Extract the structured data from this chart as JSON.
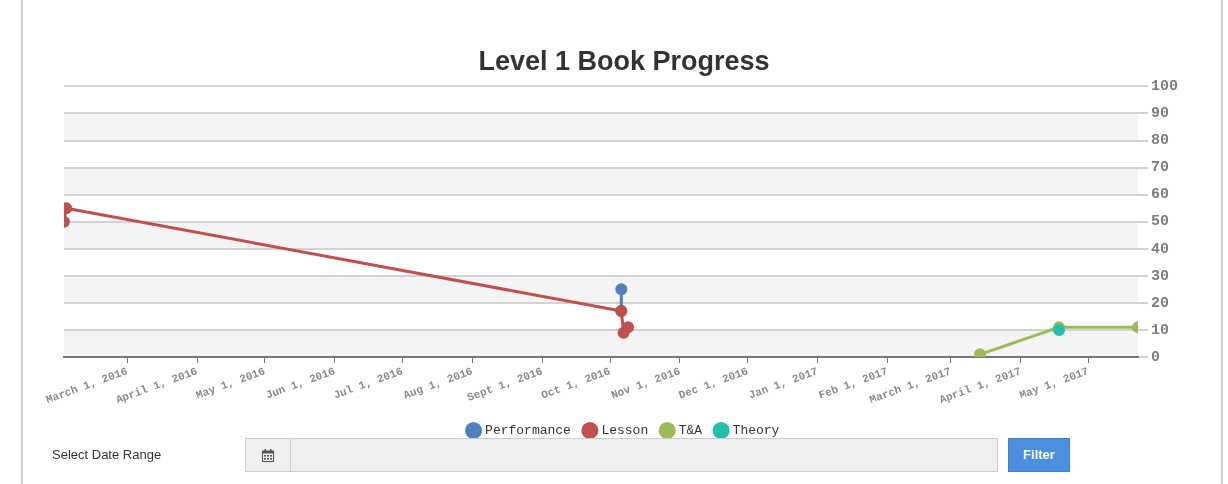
{
  "chart_data": {
    "type": "line",
    "title": "Level 1 Book Progress",
    "xlim": [
      "2016-02-02",
      "2017-05-23"
    ],
    "xticks": [
      {
        "value": "2016-03-01",
        "label": "March 1, 2016"
      },
      {
        "value": "2016-04-01",
        "label": "April 1, 2016"
      },
      {
        "value": "2016-05-01",
        "label": "May 1, 2016"
      },
      {
        "value": "2016-06-01",
        "label": "Jun 1, 2016"
      },
      {
        "value": "2016-07-01",
        "label": "Jul 1, 2016"
      },
      {
        "value": "2016-08-01",
        "label": "Aug 1, 2016"
      },
      {
        "value": "2016-09-01",
        "label": "Sept 1, 2016"
      },
      {
        "value": "2016-10-01",
        "label": "Oct 1, 2016"
      },
      {
        "value": "2016-11-01",
        "label": "Nov 1, 2016"
      },
      {
        "value": "2016-12-01",
        "label": "Dec 1, 2016"
      },
      {
        "value": "2017-01-01",
        "label": "Jan 1, 2017"
      },
      {
        "value": "2017-02-01",
        "label": "Feb 1, 2017"
      },
      {
        "value": "2017-03-01",
        "label": "March 1, 2017"
      },
      {
        "value": "2017-04-01",
        "label": "April 1, 2017"
      },
      {
        "value": "2017-05-01",
        "label": "May 1, 2017"
      }
    ],
    "ylim": [
      0,
      100
    ],
    "yticks": [
      0,
      10,
      20,
      30,
      40,
      50,
      60,
      70,
      80,
      90,
      100
    ],
    "grid": "y",
    "legend": "bottom",
    "marker": "circle",
    "line_style": "solid",
    "series": [
      {
        "name": "Performance",
        "color": "#4f81bc",
        "x": [
          "2016-10-06",
          "2016-10-06"
        ],
        "values": [
          25,
          17
        ]
      },
      {
        "name": "Lesson",
        "color": "#c0504e",
        "x": [
          "2016-02-02",
          "2016-02-03",
          "2016-10-06",
          "2016-10-07",
          "2016-10-09"
        ],
        "values": [
          50,
          55,
          17,
          9,
          11
        ]
      },
      {
        "name": "T&A",
        "color": "#9bbb58",
        "x": [
          "2017-03-14",
          "2017-04-18",
          "2017-05-23"
        ],
        "values": [
          1,
          11,
          11
        ]
      },
      {
        "name": "Theory",
        "color": "#23bfaa",
        "x": [
          "2017-04-18"
        ],
        "values": [
          10
        ]
      }
    ],
    "annotations": [
      "Select Date Range",
      "Filter"
    ]
  }
}
